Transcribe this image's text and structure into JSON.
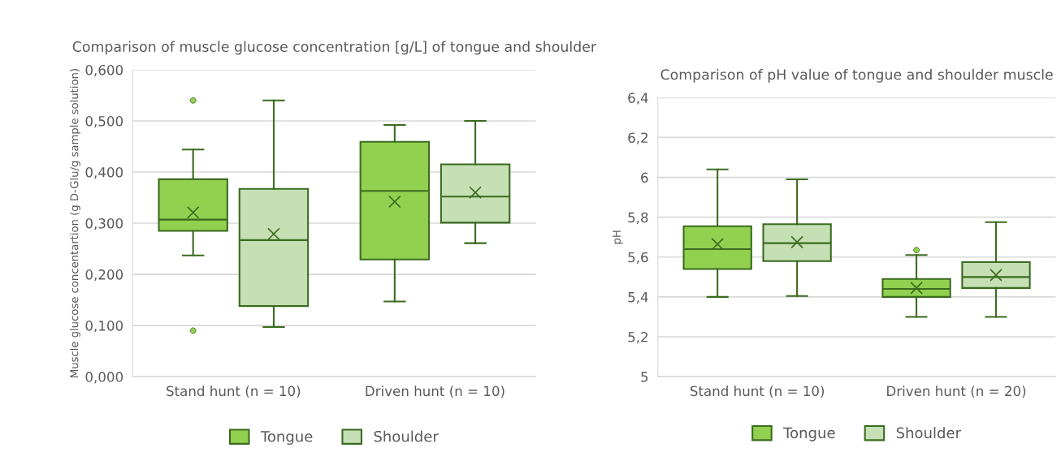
{
  "chart_data": [
    {
      "type": "box",
      "title": "Comparison of muscle glucose concentration [g/L] of tongue and shoulder",
      "ylabel": "Muscle glucose concentartion (g D-Glu/g sample solution)",
      "categories": [
        "Stand hunt (n = 10)",
        "Driven hunt (n = 10)"
      ],
      "ylim": [
        0,
        0.6
      ],
      "yticks": [
        {
          "value": 0,
          "label": "0,000"
        },
        {
          "value": 0.1,
          "label": "0,100"
        },
        {
          "value": 0.2,
          "label": "0,200"
        },
        {
          "value": 0.3,
          "label": "0,300"
        },
        {
          "value": 0.4,
          "label": "0,400"
        },
        {
          "value": 0.5,
          "label": "0,500"
        },
        {
          "value": 0.6,
          "label": "0,600"
        }
      ],
      "grid": "y",
      "legend": "bottom",
      "series": [
        {
          "name": "Tongue",
          "color": "#92d050",
          "boxes": [
            {
              "low": 0.237,
              "q1": 0.285,
              "median": 0.307,
              "q3": 0.386,
              "high": 0.444,
              "mean": 0.321,
              "outliers": [
                0.54,
                0.09
              ]
            },
            {
              "low": 0.147,
              "q1": 0.229,
              "median": 0.363,
              "q3": 0.459,
              "high": 0.492,
              "mean": 0.342
            }
          ]
        },
        {
          "name": "Shoulder",
          "color": "#c5e0b4",
          "boxes": [
            {
              "low": 0.097,
              "q1": 0.138,
              "median": 0.267,
              "q3": 0.367,
              "high": 0.54,
              "mean": 0.279
            },
            {
              "low": 0.261,
              "q1": 0.301,
              "median": 0.352,
              "q3": 0.415,
              "high": 0.5,
              "mean": 0.36
            }
          ]
        }
      ]
    },
    {
      "type": "box",
      "title": "Comparison of pH value of tongue and shoulder muscle",
      "ylabel": "pH",
      "categories": [
        "Stand hunt (n = 10)",
        "Driven hunt (n = 20)"
      ],
      "ylim": [
        5,
        6.4
      ],
      "yticks": [
        {
          "value": 5,
          "label": "5"
        },
        {
          "value": 5.2,
          "label": "5,2"
        },
        {
          "value": 5.4,
          "label": "5,4"
        },
        {
          "value": 5.6,
          "label": "5,6"
        },
        {
          "value": 5.8,
          "label": "5,8"
        },
        {
          "value": 6,
          "label": "6"
        },
        {
          "value": 6.2,
          "label": "6,2"
        },
        {
          "value": 6.4,
          "label": "6,4"
        }
      ],
      "grid": "y",
      "legend": "bottom",
      "series": [
        {
          "name": "Tongue",
          "color": "#92d050",
          "boxes": [
            {
              "low": 5.4,
              "q1": 5.54,
              "median": 5.64,
              "q3": 5.755,
              "high": 6.04,
              "mean": 5.665
            },
            {
              "low": 5.3,
              "q1": 5.4,
              "median": 5.44,
              "q3": 5.49,
              "high": 5.61,
              "mean": 5.445,
              "outliers": [
                5.635
              ]
            }
          ]
        },
        {
          "name": "Shoulder",
          "color": "#c5e0b4",
          "boxes": [
            {
              "low": 5.405,
              "q1": 5.58,
              "median": 5.67,
              "q3": 5.765,
              "high": 5.99,
              "mean": 5.675
            },
            {
              "low": 5.3,
              "q1": 5.445,
              "median": 5.5,
              "q3": 5.575,
              "high": 5.775,
              "mean": 5.51
            }
          ]
        }
      ]
    }
  ]
}
